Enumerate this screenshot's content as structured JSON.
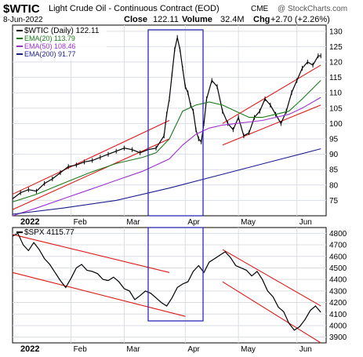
{
  "header": {
    "symbol": "$WTIC",
    "name": "Light Crude Oil - Continuous Contract (EOD)",
    "exchange": "CME",
    "watermark": "@ StockCharts.com",
    "date": "8-Jun-2022",
    "close_label": "Close",
    "close_value": "122.11",
    "volume_label": "Volume",
    "volume_value": "32.4M",
    "chg_label": "Chg",
    "chg_value": "+2.70 (+2.26%)"
  },
  "x_labels": [
    "2022",
    "Feb",
    "Mar",
    "Apr",
    "May",
    "Jun"
  ],
  "colors": {
    "price": "#000000",
    "ema20": "#1a7a1a",
    "ema50": "#9b30d0",
    "ema200": "#1c1c8c",
    "trendline": "#e01818",
    "highlight": "#2b2bb5",
    "grid": "#d9dde3"
  },
  "chart_data": [
    {
      "type": "line",
      "panel": "top",
      "legend": [
        "$WTIC (Daily) 122.11",
        "EMA(20) 113.79",
        "EMA(50) 108.46",
        "EMA(200) 91.77"
      ],
      "ylim": [
        70,
        132
      ],
      "yticks": [
        75,
        80,
        85,
        90,
        95,
        100,
        105,
        110,
        115,
        120,
        125,
        130
      ],
      "x_day_range": [
        1,
        111
      ],
      "series": [
        {
          "name": "$WTIC (Daily) 122.11",
          "key": "price",
          "points": [
            [
              1,
              75.5
            ],
            [
              4,
              77.5
            ],
            [
              7,
              78.5
            ],
            [
              10,
              78
            ],
            [
              13,
              80.5
            ],
            [
              16,
              82
            ],
            [
              19,
              84
            ],
            [
              22,
              86
            ],
            [
              25,
              86.5
            ],
            [
              28,
              87.5
            ],
            [
              31,
              88
            ],
            [
              34,
              89
            ],
            [
              37,
              90
            ],
            [
              40,
              91
            ],
            [
              43,
              92
            ],
            [
              46,
              91.5
            ],
            [
              49,
              90.5
            ],
            [
              52,
              91.5
            ],
            [
              55,
              92
            ],
            [
              58,
              96
            ],
            [
              59,
              103
            ],
            [
              60,
              108
            ],
            [
              61,
              116
            ],
            [
              62,
              124
            ],
            [
              63,
              128
            ],
            [
              64,
              124
            ],
            [
              65,
              118
            ],
            [
              66,
              112
            ],
            [
              67,
              110
            ],
            [
              68,
              106
            ],
            [
              69,
              104
            ],
            [
              70,
              98
            ],
            [
              71,
              95
            ],
            [
              72,
              94
            ],
            [
              73,
              100
            ],
            [
              74,
              108
            ],
            [
              76,
              114
            ],
            [
              78,
              112
            ],
            [
              80,
              104
            ],
            [
              82,
              100
            ],
            [
              84,
              98
            ],
            [
              86,
              102
            ],
            [
              88,
              96
            ],
            [
              90,
              97
            ],
            [
              92,
              102
            ],
            [
              94,
              104
            ],
            [
              96,
              108
            ],
            [
              98,
              106
            ],
            [
              100,
              103
            ],
            [
              102,
              100
            ],
            [
              104,
              104
            ],
            [
              106,
              110
            ],
            [
              108,
              114
            ],
            [
              110,
              118
            ],
            [
              112,
              120
            ],
            [
              114,
              119
            ],
            [
              116,
              122
            ],
            [
              117,
              122
            ]
          ]
        },
        {
          "name": "EMA(20) 113.79",
          "key": "ema20",
          "points": [
            [
              1,
              74.5
            ],
            [
              10,
              77
            ],
            [
              20,
              80.5
            ],
            [
              30,
              84
            ],
            [
              40,
              87
            ],
            [
              50,
              89
            ],
            [
              55,
              90.5
            ],
            [
              60,
              95
            ],
            [
              65,
              104
            ],
            [
              70,
              106
            ],
            [
              75,
              107
            ],
            [
              80,
              106
            ],
            [
              85,
              104
            ],
            [
              90,
              102
            ],
            [
              95,
              102
            ],
            [
              100,
              103
            ],
            [
              105,
              104
            ],
            [
              110,
              108
            ],
            [
              117,
              114
            ]
          ]
        },
        {
          "name": "EMA(50) 108.46",
          "key": "ema50",
          "points": [
            [
              1,
              70
            ],
            [
              10,
              72.5
            ],
            [
              20,
              75.5
            ],
            [
              30,
              78.5
            ],
            [
              40,
              81.5
            ],
            [
              50,
              84.5
            ],
            [
              60,
              88.5
            ],
            [
              65,
              93
            ],
            [
              70,
              96.5
            ],
            [
              75,
              98.5
            ],
            [
              80,
              99.5
            ],
            [
              85,
              100
            ],
            [
              90,
              100.5
            ],
            [
              95,
              101
            ],
            [
              100,
              102
            ],
            [
              105,
              103
            ],
            [
              110,
              105
            ],
            [
              117,
              108.5
            ]
          ]
        },
        {
          "name": "EMA(200) 91.77",
          "key": "ema200",
          "points": [
            [
              1,
              70.5
            ],
            [
              20,
              72.5
            ],
            [
              40,
              75
            ],
            [
              60,
              79
            ],
            [
              80,
              83.5
            ],
            [
              100,
              88
            ],
            [
              117,
              91.8
            ]
          ]
        }
      ],
      "trendlines": [
        {
          "points": [
            [
              1,
              77
            ],
            [
              60,
              101
            ]
          ]
        },
        {
          "points": [
            [
              1,
              72
            ],
            [
              60,
              95
            ]
          ]
        },
        {
          "points": [
            [
              80,
              100
            ],
            [
              117,
              119
            ]
          ]
        },
        {
          "points": [
            [
              80,
              93
            ],
            [
              117,
              106
            ]
          ]
        }
      ]
    },
    {
      "type": "line",
      "panel": "bottom",
      "legend": [
        "$SPX 4115.77"
      ],
      "ylim": [
        3850,
        4850
      ],
      "yticks": [
        3900,
        4000,
        4100,
        4200,
        4300,
        4400,
        4500,
        4600,
        4700,
        4800
      ],
      "x_day_range": [
        1,
        111
      ],
      "series": [
        {
          "name": "$SPX 4115.77",
          "key": "spx",
          "points": [
            [
              1,
              4775
            ],
            [
              3,
              4800
            ],
            [
              5,
              4700
            ],
            [
              7,
              4650
            ],
            [
              9,
              4720
            ],
            [
              11,
              4660
            ],
            [
              13,
              4580
            ],
            [
              15,
              4530
            ],
            [
              17,
              4460
            ],
            [
              19,
              4390
            ],
            [
              21,
              4330
            ],
            [
              23,
              4410
            ],
            [
              25,
              4500
            ],
            [
              27,
              4530
            ],
            [
              29,
              4480
            ],
            [
              31,
              4470
            ],
            [
              33,
              4450
            ],
            [
              35,
              4400
            ],
            [
              37,
              4390
            ],
            [
              39,
              4420
            ],
            [
              41,
              4380
            ],
            [
              43,
              4320
            ],
            [
              45,
              4300
            ],
            [
              47,
              4225
            ],
            [
              49,
              4260
            ],
            [
              51,
              4300
            ],
            [
              53,
              4280
            ],
            [
              55,
              4240
            ],
            [
              57,
              4200
            ],
            [
              59,
              4170
            ],
            [
              61,
              4240
            ],
            [
              63,
              4330
            ],
            [
              65,
              4360
            ],
            [
              67,
              4380
            ],
            [
              69,
              4470
            ],
            [
              71,
              4520
            ],
            [
              73,
              4460
            ],
            [
              75,
              4550
            ],
            [
              77,
              4580
            ],
            [
              79,
              4610
            ],
            [
              81,
              4640
            ],
            [
              83,
              4590
            ],
            [
              85,
              4520
            ],
            [
              87,
              4500
            ],
            [
              89,
              4480
            ],
            [
              91,
              4430
            ],
            [
              93,
              4470
            ],
            [
              95,
              4400
            ],
            [
              97,
              4300
            ],
            [
              99,
              4250
            ],
            [
              101,
              4160
            ],
            [
              103,
              4120
            ],
            [
              105,
              4020
            ],
            [
              107,
              3960
            ],
            [
              109,
              3990
            ],
            [
              111,
              4050
            ],
            [
              113,
              4130
            ],
            [
              115,
              4170
            ],
            [
              117,
              4115
            ]
          ]
        }
      ],
      "trendlines": [
        {
          "points": [
            [
              1,
              4790
            ],
            [
              60,
              4460
            ]
          ]
        },
        {
          "points": [
            [
              1,
              4460
            ],
            [
              66,
              4080
            ]
          ]
        },
        {
          "points": [
            [
              80,
              4660
            ],
            [
              117,
              4170
            ]
          ]
        },
        {
          "points": [
            [
              80,
              4380
            ],
            [
              117,
              3850
            ]
          ]
        }
      ]
    }
  ]
}
